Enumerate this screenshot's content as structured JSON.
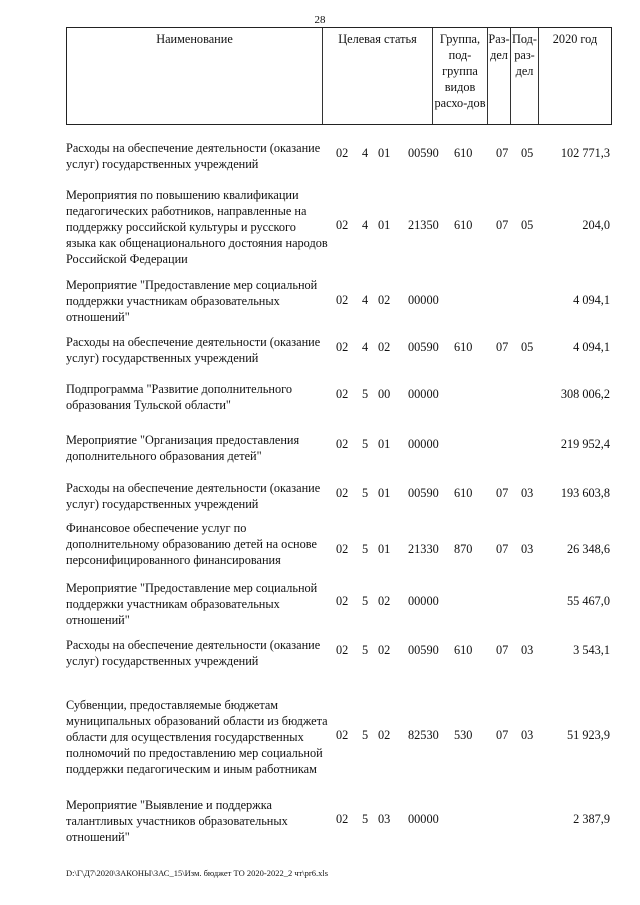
{
  "page_number": "28",
  "header": {
    "name": "Наименование",
    "target": "Целевая статья",
    "group": "Группа, под-группа видов расхо-дов",
    "section": "Раз-дел",
    "subsection": "Под-раз-дел",
    "year": "2020 год"
  },
  "rows": [
    {
      "name": "Расходы на обеспечение деятельности (оказание услуг) государственных учреждений",
      "c1": "02",
      "c2": "4",
      "c3": "01",
      "c4": "00590",
      "group": "610",
      "section": "07",
      "subsection": "05",
      "amount": "102 771,3"
    },
    {
      "name": "Мероприятия по повышению квалификации педагогических работников, направленные на поддержку российской культуры и русского языка как общенационального достояния народов Российской Федерации",
      "c1": "02",
      "c2": "4",
      "c3": "01",
      "c4": "21350",
      "group": "610",
      "section": "07",
      "subsection": "05",
      "amount": "204,0"
    },
    {
      "name": "Мероприятие \"Предоставление мер социальной поддержки участникам образовательных отношений\"",
      "c1": "02",
      "c2": "4",
      "c3": "02",
      "c4": "00000",
      "group": "",
      "section": "",
      "subsection": "",
      "amount": "4 094,1"
    },
    {
      "name": "Расходы на обеспечение деятельности (оказание услуг) государственных учреждений",
      "c1": "02",
      "c2": "4",
      "c3": "02",
      "c4": "00590",
      "group": "610",
      "section": "07",
      "subsection": "05",
      "amount": "4 094,1"
    },
    {
      "name": "Подпрограмма \"Развитие дополнительного образования Тульской области\"",
      "c1": "02",
      "c2": "5",
      "c3": "00",
      "c4": "00000",
      "group": "",
      "section": "",
      "subsection": "",
      "amount": "308 006,2"
    },
    {
      "name": "Мероприятие \"Организация предоставления дополнительного образования детей\"",
      "c1": "02",
      "c2": "5",
      "c3": "01",
      "c4": "00000",
      "group": "",
      "section": "",
      "subsection": "",
      "amount": "219 952,4"
    },
    {
      "name": "Расходы на обеспечение деятельности (оказание услуг) государственных учреждений",
      "c1": "02",
      "c2": "5",
      "c3": "01",
      "c4": "00590",
      "group": "610",
      "section": "07",
      "subsection": "03",
      "amount": "193 603,8"
    },
    {
      "name": "Финансовое обеспечение услуг по дополнительному образованию детей на основе персонифицированного финансирования",
      "c1": "02",
      "c2": "5",
      "c3": "01",
      "c4": "21330",
      "group": "870",
      "section": "07",
      "subsection": "03",
      "amount": "26 348,6"
    },
    {
      "name": "Мероприятие \"Предоставление мер социальной поддержки участникам образовательных отношений\"",
      "c1": "02",
      "c2": "5",
      "c3": "02",
      "c4": "00000",
      "group": "",
      "section": "",
      "subsection": "",
      "amount": "55 467,0"
    },
    {
      "name": "Расходы на обеспечение деятельности (оказание услуг) государственных учреждений",
      "c1": "02",
      "c2": "5",
      "c3": "02",
      "c4": "00590",
      "group": "610",
      "section": "07",
      "subsection": "03",
      "amount": "3 543,1"
    },
    {
      "name": "Субвенции, предоставляемые бюджетам муниципальных образований области из бюджета области для осуществления государственных полномочий по предоставлению мер социальной поддержки педагогическим и иным работникам",
      "c1": "02",
      "c2": "5",
      "c3": "02",
      "c4": "82530",
      "group": "530",
      "section": "07",
      "subsection": "03",
      "amount": "51 923,9"
    },
    {
      "name": "Мероприятие \"Выявление и поддержка талантливых участников образовательных отношений\"",
      "c1": "02",
      "c2": "5",
      "c3": "03",
      "c4": "00000",
      "group": "",
      "section": "",
      "subsection": "",
      "amount": "2 387,9"
    }
  ],
  "footer": "D:\\Г\\Д7\\2020\\ЗАКОНЫ\\ЗАС_15\\Изм. бюджет ТО 2020-2022_2 чт\\pr6.xls"
}
